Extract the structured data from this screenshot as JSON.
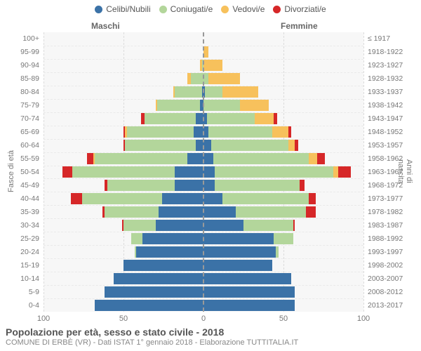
{
  "legend": [
    {
      "label": "Celibi/Nubili",
      "color": "#3b72a7"
    },
    {
      "label": "Coniugati/e",
      "color": "#b3d69b"
    },
    {
      "label": "Vedovi/e",
      "color": "#f7c15c"
    },
    {
      "label": "Divorziati/e",
      "color": "#d62728"
    }
  ],
  "header": {
    "left": "Maschi",
    "right": "Femmine"
  },
  "axis": {
    "left_label": "Fasce di età",
    "right_label": "Anni di nascita",
    "xmax": 100,
    "xticks": [
      100,
      50,
      0,
      50,
      100
    ]
  },
  "colors": {
    "celibi": "#3b72a7",
    "coniugati": "#b3d69b",
    "vedovi": "#f7c15c",
    "divorziati": "#d62728",
    "plot_bg": "#f7f7f7",
    "grid": "#dcdcdc",
    "center": "#999999"
  },
  "footer": {
    "title": "Popolazione per età, sesso e stato civile - 2018",
    "subtitle": "COMUNE DI ERBÈ (VR) - Dati ISTAT 1° gennaio 2018 - Elaborazione TUTTITALIA.IT"
  },
  "rows": [
    {
      "age": "100+",
      "birth": "≤ 1917",
      "m": [
        0,
        0,
        0,
        0
      ],
      "f": [
        0,
        0,
        0,
        0
      ]
    },
    {
      "age": "95-99",
      "birth": "1918-1922",
      "m": [
        0,
        0,
        0,
        0
      ],
      "f": [
        0,
        0,
        3,
        0
      ]
    },
    {
      "age": "90-94",
      "birth": "1923-1927",
      "m": [
        0,
        1,
        1,
        0
      ],
      "f": [
        0,
        0,
        12,
        0
      ]
    },
    {
      "age": "85-89",
      "birth": "1928-1932",
      "m": [
        0,
        8,
        2,
        0
      ],
      "f": [
        0,
        3,
        20,
        0
      ]
    },
    {
      "age": "80-84",
      "birth": "1933-1937",
      "m": [
        1,
        17,
        1,
        0
      ],
      "f": [
        1,
        11,
        22,
        0
      ]
    },
    {
      "age": "75-79",
      "birth": "1938-1942",
      "m": [
        2,
        27,
        1,
        0
      ],
      "f": [
        0,
        23,
        18,
        0
      ]
    },
    {
      "age": "70-74",
      "birth": "1943-1947",
      "m": [
        5,
        32,
        0,
        2
      ],
      "f": [
        2,
        30,
        12,
        2
      ]
    },
    {
      "age": "65-69",
      "birth": "1948-1952",
      "m": [
        6,
        42,
        1,
        1
      ],
      "f": [
        3,
        40,
        10,
        2
      ]
    },
    {
      "age": "60-64",
      "birth": "1953-1957",
      "m": [
        5,
        44,
        0,
        1
      ],
      "f": [
        5,
        48,
        4,
        2
      ]
    },
    {
      "age": "55-59",
      "birth": "1958-1962",
      "m": [
        10,
        58,
        1,
        4
      ],
      "f": [
        6,
        60,
        5,
        5
      ]
    },
    {
      "age": "50-54",
      "birth": "1963-1967",
      "m": [
        18,
        64,
        0,
        6
      ],
      "f": [
        7,
        74,
        3,
        8
      ]
    },
    {
      "age": "45-49",
      "birth": "1968-1972",
      "m": [
        18,
        42,
        0,
        2
      ],
      "f": [
        7,
        53,
        0,
        3
      ]
    },
    {
      "age": "40-44",
      "birth": "1973-1977",
      "m": [
        26,
        50,
        0,
        7
      ],
      "f": [
        12,
        54,
        0,
        4
      ]
    },
    {
      "age": "35-39",
      "birth": "1978-1982",
      "m": [
        28,
        34,
        0,
        1
      ],
      "f": [
        20,
        44,
        0,
        6
      ]
    },
    {
      "age": "30-34",
      "birth": "1983-1987",
      "m": [
        30,
        20,
        0,
        1
      ],
      "f": [
        25,
        31,
        0,
        1
      ]
    },
    {
      "age": "25-29",
      "birth": "1988-1992",
      "m": [
        38,
        7,
        0,
        0
      ],
      "f": [
        44,
        12,
        0,
        0
      ]
    },
    {
      "age": "20-24",
      "birth": "1993-1997",
      "m": [
        42,
        1,
        0,
        0
      ],
      "f": [
        45,
        2,
        0,
        0
      ]
    },
    {
      "age": "15-19",
      "birth": "1998-2002",
      "m": [
        50,
        0,
        0,
        0
      ],
      "f": [
        43,
        0,
        0,
        0
      ]
    },
    {
      "age": "10-14",
      "birth": "2003-2007",
      "m": [
        56,
        0,
        0,
        0
      ],
      "f": [
        55,
        0,
        0,
        0
      ]
    },
    {
      "age": "5-9",
      "birth": "2008-2012",
      "m": [
        62,
        0,
        0,
        0
      ],
      "f": [
        57,
        0,
        0,
        0
      ]
    },
    {
      "age": "0-4",
      "birth": "2013-2017",
      "m": [
        68,
        0,
        0,
        0
      ],
      "f": [
        57,
        0,
        0,
        0
      ]
    }
  ]
}
